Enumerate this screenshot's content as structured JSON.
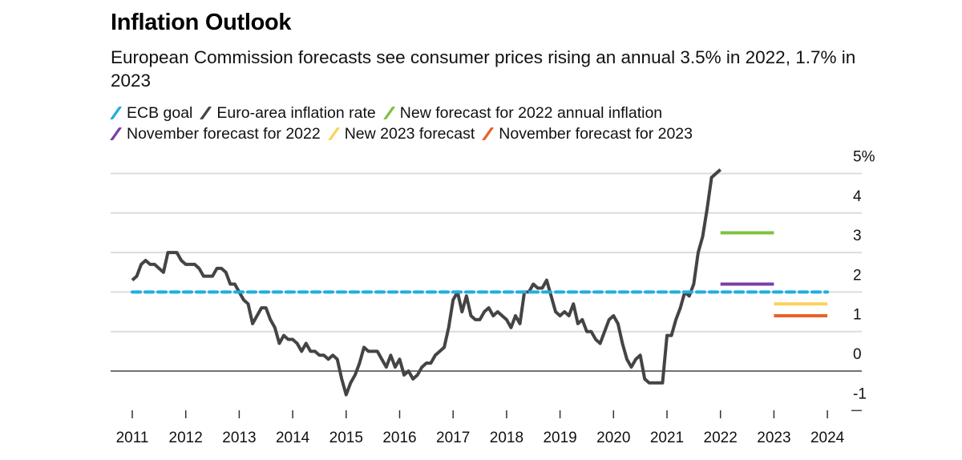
{
  "chart_data": {
    "type": "line",
    "title": "Inflation Outlook",
    "subtitle": "European Commission forecasts see consumer prices rising an annual 3.5% in 2022, 1.7% in 2023",
    "legend_position": "top",
    "grid": true,
    "xlim": [
      2011,
      2024
    ],
    "ylim": [
      -1,
      5
    ],
    "x_ticks": [
      "2011",
      "2012",
      "2013",
      "2014",
      "2015",
      "2016",
      "2017",
      "2018",
      "2019",
      "2020",
      "2021",
      "2022",
      "2023",
      "2024"
    ],
    "y_ticks": [
      "5%",
      "4",
      "3",
      "2",
      "1",
      "0",
      "-1"
    ],
    "y_tick_values": [
      5,
      4,
      3,
      2,
      1,
      0,
      -1
    ],
    "series": [
      {
        "name": "ECB goal",
        "color": "#1eaee0",
        "style": "dashed",
        "x": [
          2011,
          2024
        ],
        "values": [
          2,
          2
        ]
      },
      {
        "name": "Euro-area inflation rate",
        "color": "#444444",
        "style": "solid",
        "x_start": "2011-01",
        "frequency": "monthly",
        "values": [
          2.3,
          2.4,
          2.7,
          2.8,
          2.7,
          2.7,
          2.6,
          2.5,
          3.0,
          3.0,
          3.0,
          2.8,
          2.7,
          2.7,
          2.7,
          2.6,
          2.4,
          2.4,
          2.4,
          2.6,
          2.6,
          2.5,
          2.2,
          2.2,
          2.0,
          1.8,
          1.7,
          1.2,
          1.4,
          1.6,
          1.6,
          1.3,
          1.1,
          0.7,
          0.9,
          0.8,
          0.8,
          0.7,
          0.5,
          0.7,
          0.5,
          0.5,
          0.4,
          0.4,
          0.3,
          0.4,
          0.3,
          -0.2,
          -0.6,
          -0.3,
          -0.1,
          0.2,
          0.6,
          0.5,
          0.5,
          0.5,
          0.3,
          0.1,
          0.4,
          0.1,
          0.3,
          -0.1,
          0.0,
          -0.2,
          -0.1,
          0.1,
          0.2,
          0.2,
          0.4,
          0.5,
          0.6,
          1.1,
          1.8,
          2.0,
          1.5,
          1.9,
          1.4,
          1.3,
          1.3,
          1.5,
          1.6,
          1.4,
          1.5,
          1.4,
          1.3,
          1.1,
          1.4,
          1.2,
          2.0,
          2.0,
          2.2,
          2.1,
          2.1,
          2.3,
          1.9,
          1.5,
          1.4,
          1.5,
          1.4,
          1.7,
          1.2,
          1.3,
          1.0,
          1.0,
          0.8,
          0.7,
          1.0,
          1.3,
          1.4,
          1.2,
          0.7,
          0.3,
          0.1,
          0.3,
          0.4,
          -0.2,
          -0.3,
          -0.3,
          -0.3,
          -0.3,
          0.9,
          0.9,
          1.3,
          1.6,
          2.0,
          1.9,
          2.2,
          3.0,
          3.4,
          4.1,
          4.9,
          5.0,
          5.1
        ]
      },
      {
        "name": "New forecast for 2022 annual inflation",
        "color": "#7dc241",
        "style": "solid",
        "x": [
          2022,
          2023
        ],
        "values": [
          3.5,
          3.5
        ]
      },
      {
        "name": "November forecast for 2022",
        "color": "#7b3fa8",
        "style": "solid",
        "x": [
          2022,
          2023
        ],
        "values": [
          2.2,
          2.2
        ]
      },
      {
        "name": "New 2023 forecast",
        "color": "#fdd25f",
        "style": "solid",
        "x": [
          2023,
          2024
        ],
        "values": [
          1.7,
          1.7
        ]
      },
      {
        "name": "November forecast for 2023",
        "color": "#e8622a",
        "style": "solid",
        "x": [
          2023,
          2024
        ],
        "values": [
          1.4,
          1.4
        ]
      }
    ]
  }
}
